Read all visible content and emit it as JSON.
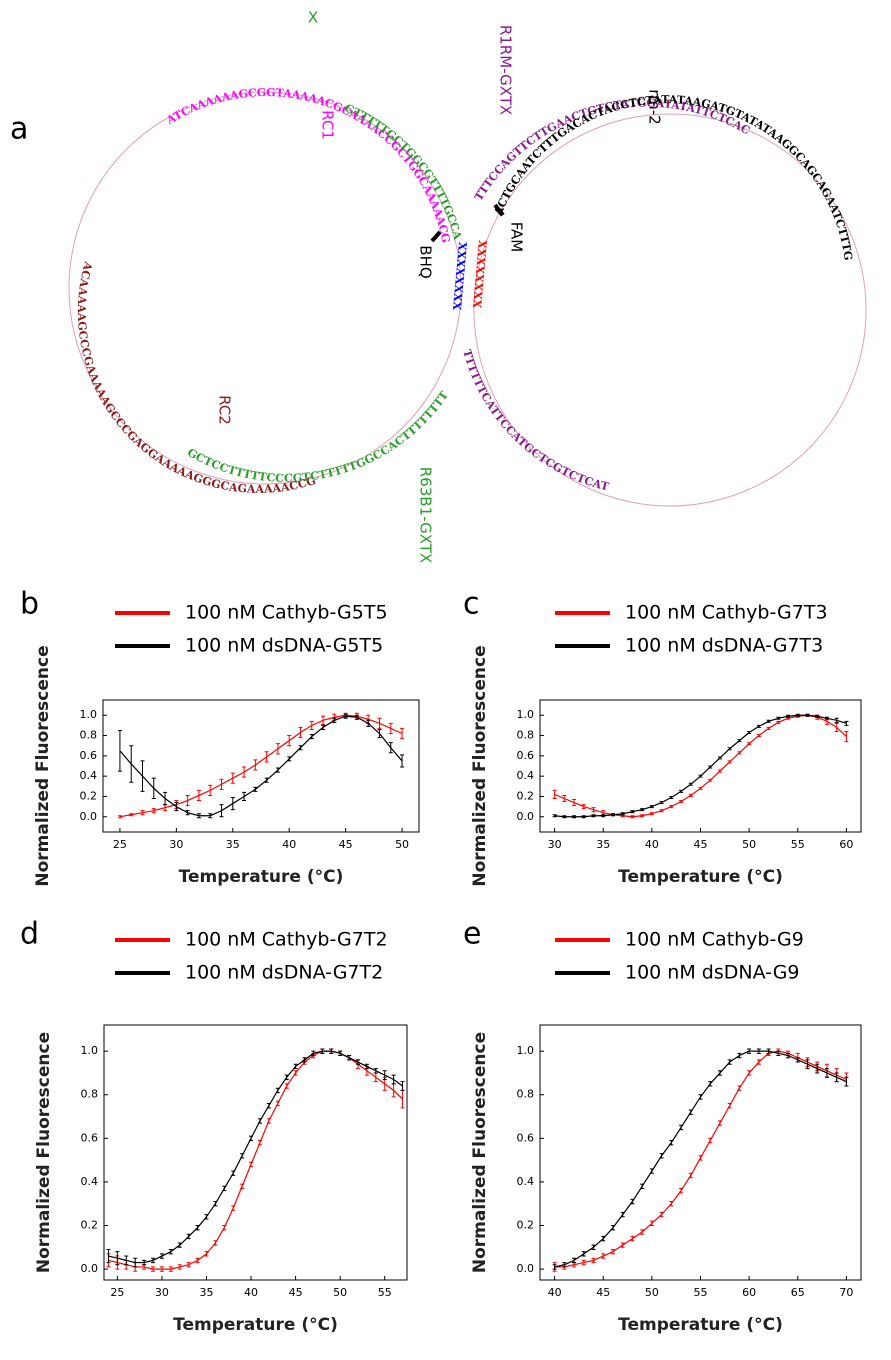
{
  "diagram": {
    "panel_label": "a",
    "x_label": "X",
    "r1rm": "R1RM-GXTX",
    "rc1": "RC1",
    "rm2": "rm-2",
    "fam": "FAM",
    "bhq": "BHQ",
    "rc2": "RC2",
    "r63b1": "R63B1-GXTX",
    "seq_rc1": "ATCAAAAAAGCGGTAAAAACGCAAAACCGCTGGCAAAAACGCTA",
    "seq_green_top": "GTTTTTGCTGGCGTTTTGCCAGCGGTTTTGCGTTT",
    "seq_rc2": "ACAAAAAGCCCGAAAAAGCCCGAGGAAAAAGGGCAGAAAAACCG",
    "seq_green_bottom": "GCTCCTTTTTCCCGTCTTTTTGGCCACTTTTTTTT",
    "seq_purple_top": "TTTCCAGTTCTTGAACTGTCTATGGATATATTCTCAC",
    "seq_rm2": "ACTGCAATCTTTGACACTACCTCTATATAAGATGTATATAAGGCAGCAGAATCTTTGG",
    "seq_purple_bottom": "TTTTTTCATTCCATGCTCGTCTCATCTTTCTT",
    "x_blue": "XXXXXXXX",
    "x_red": "XXXXXXXX"
  },
  "chart_data": [
    {
      "type": "line",
      "panel_label": "b",
      "xlabel": "Temperature (°C)",
      "ylabel": "Normalized Fluorescence",
      "xlim": [
        23.5,
        51.5
      ],
      "ylim": [
        -0.15,
        1.15
      ],
      "xticks": [
        25,
        30,
        35,
        40,
        45,
        50
      ],
      "yticks": [
        {
          "value": 0,
          "label": "0.0"
        },
        0.2,
        0.4,
        0.6,
        0.8,
        {
          "value": 1,
          "label": "1.0"
        }
      ],
      "x": [
        25,
        26,
        27,
        28,
        29,
        30,
        31,
        32,
        33,
        34,
        35,
        36,
        37,
        38,
        39,
        40,
        41,
        42,
        43,
        44,
        45,
        46,
        47,
        48,
        49,
        50
      ],
      "series": [
        {
          "name": "100 nM Cathyb-G5T5",
          "color": "#ff0000",
          "values": [
            0.0,
            0.02,
            0.04,
            0.06,
            0.09,
            0.12,
            0.16,
            0.21,
            0.26,
            0.32,
            0.38,
            0.44,
            0.51,
            0.59,
            0.67,
            0.75,
            0.83,
            0.9,
            0.95,
            0.98,
            1.0,
            0.99,
            0.96,
            0.92,
            0.87,
            0.82
          ],
          "errors": [
            0.01,
            0.01,
            0.02,
            0.02,
            0.03,
            0.04,
            0.05,
            0.05,
            0.05,
            0.05,
            0.05,
            0.05,
            0.05,
            0.05,
            0.05,
            0.05,
            0.05,
            0.04,
            0.04,
            0.03,
            0.02,
            0.03,
            0.04,
            0.05,
            0.05,
            0.05
          ]
        },
        {
          "name": "100 nM dsDNA-G5T5",
          "color": "#000000",
          "values": [
            0.65,
            0.52,
            0.4,
            0.28,
            0.18,
            0.1,
            0.04,
            0.01,
            0.01,
            0.06,
            0.13,
            0.2,
            0.27,
            0.36,
            0.46,
            0.57,
            0.68,
            0.79,
            0.88,
            0.95,
            0.99,
            0.98,
            0.92,
            0.82,
            0.68,
            0.55
          ],
          "errors": [
            0.2,
            0.18,
            0.15,
            0.1,
            0.06,
            0.04,
            0.02,
            0.02,
            0.02,
            0.06,
            0.06,
            0.04,
            0.02,
            0.02,
            0.02,
            0.02,
            0.02,
            0.02,
            0.02,
            0.02,
            0.02,
            0.02,
            0.03,
            0.04,
            0.05,
            0.06
          ]
        }
      ]
    },
    {
      "type": "line",
      "panel_label": "c",
      "xlabel": "Temperature (°C)",
      "ylabel": "Normalized Fluorescence",
      "xlim": [
        28.5,
        61.5
      ],
      "ylim": [
        -0.15,
        1.15
      ],
      "xticks": [
        30,
        35,
        40,
        45,
        50,
        55,
        60
      ],
      "yticks": [
        {
          "value": 0,
          "label": "0.0"
        },
        0.2,
        0.4,
        0.6,
        0.8,
        {
          "value": 1,
          "label": "1.0"
        }
      ],
      "x": [
        30,
        31,
        32,
        33,
        34,
        35,
        36,
        37,
        38,
        39,
        40,
        41,
        42,
        43,
        44,
        45,
        46,
        47,
        48,
        49,
        50,
        51,
        52,
        53,
        54,
        55,
        56,
        57,
        58,
        59,
        60
      ],
      "series": [
        {
          "name": "100 nM Cathyb-G7T3",
          "color": "#ff0000",
          "values": [
            0.22,
            0.18,
            0.14,
            0.1,
            0.07,
            0.04,
            0.02,
            0.01,
            0.0,
            0.01,
            0.03,
            0.06,
            0.1,
            0.15,
            0.21,
            0.28,
            0.36,
            0.45,
            0.54,
            0.63,
            0.72,
            0.8,
            0.87,
            0.93,
            0.97,
            0.99,
            1.0,
            0.98,
            0.94,
            0.88,
            0.79
          ],
          "errors": [
            0.04,
            0.03,
            0.03,
            0.02,
            0.02,
            0.02,
            0.01,
            0.01,
            0.01,
            0.01,
            0.01,
            0.01,
            0.01,
            0.01,
            0.01,
            0.01,
            0.01,
            0.01,
            0.01,
            0.01,
            0.01,
            0.01,
            0.01,
            0.01,
            0.01,
            0.01,
            0.01,
            0.02,
            0.03,
            0.04,
            0.05
          ]
        },
        {
          "name": "100 nM dsDNA-G7T3",
          "color": "#000000",
          "values": [
            0.01,
            0.0,
            0.0,
            0.0,
            0.01,
            0.01,
            0.02,
            0.03,
            0.05,
            0.07,
            0.1,
            0.14,
            0.19,
            0.25,
            0.32,
            0.4,
            0.49,
            0.58,
            0.67,
            0.75,
            0.83,
            0.89,
            0.94,
            0.97,
            0.99,
            1.0,
            1.0,
            0.99,
            0.97,
            0.95,
            0.92
          ],
          "errors": [
            0.01,
            0.01,
            0.01,
            0.01,
            0.01,
            0.01,
            0.01,
            0.01,
            0.01,
            0.01,
            0.01,
            0.01,
            0.01,
            0.01,
            0.01,
            0.01,
            0.01,
            0.01,
            0.01,
            0.01,
            0.01,
            0.01,
            0.01,
            0.01,
            0.01,
            0.01,
            0.01,
            0.01,
            0.01,
            0.02,
            0.02
          ]
        }
      ]
    },
    {
      "type": "line",
      "panel_label": "d",
      "xlabel": "Temperature (°C)",
      "ylabel": "Normalized Fluorescence",
      "xlim": [
        23.5,
        57.5
      ],
      "ylim": [
        -0.05,
        1.12
      ],
      "xticks": [
        25,
        30,
        35,
        40,
        45,
        50,
        55
      ],
      "yticks": [
        {
          "value": 0,
          "label": "0.0"
        },
        0.2,
        0.4,
        0.6,
        0.8,
        {
          "value": 1,
          "label": "1.0"
        }
      ],
      "x": [
        24,
        25,
        26,
        27,
        28,
        29,
        30,
        31,
        32,
        33,
        34,
        35,
        36,
        37,
        38,
        39,
        40,
        41,
        42,
        43,
        44,
        45,
        46,
        47,
        48,
        49,
        50,
        51,
        52,
        53,
        54,
        55,
        56,
        57
      ],
      "series": [
        {
          "name": "100 nM Cathyb-G7T2",
          "color": "#ff0000",
          "values": [
            0.04,
            0.03,
            0.02,
            0.01,
            0.01,
            0.0,
            0.0,
            0.0,
            0.01,
            0.02,
            0.04,
            0.07,
            0.12,
            0.19,
            0.28,
            0.38,
            0.48,
            0.58,
            0.68,
            0.76,
            0.84,
            0.9,
            0.95,
            0.98,
            1.0,
            1.0,
            0.99,
            0.97,
            0.94,
            0.91,
            0.88,
            0.85,
            0.82,
            0.78
          ],
          "errors": [
            0.03,
            0.03,
            0.02,
            0.02,
            0.01,
            0.01,
            0.01,
            0.01,
            0.01,
            0.01,
            0.01,
            0.01,
            0.01,
            0.01,
            0.01,
            0.01,
            0.01,
            0.01,
            0.01,
            0.01,
            0.01,
            0.01,
            0.01,
            0.01,
            0.01,
            0.01,
            0.01,
            0.01,
            0.02,
            0.02,
            0.02,
            0.03,
            0.03,
            0.04
          ]
        },
        {
          "name": "100 nM dsDNA-G7T2",
          "color": "#000000",
          "values": [
            0.06,
            0.05,
            0.04,
            0.03,
            0.03,
            0.04,
            0.06,
            0.08,
            0.11,
            0.15,
            0.19,
            0.24,
            0.3,
            0.37,
            0.44,
            0.52,
            0.6,
            0.68,
            0.75,
            0.82,
            0.88,
            0.93,
            0.96,
            0.99,
            1.0,
            1.0,
            0.99,
            0.97,
            0.95,
            0.93,
            0.91,
            0.89,
            0.87,
            0.84
          ],
          "errors": [
            0.03,
            0.03,
            0.02,
            0.02,
            0.01,
            0.01,
            0.01,
            0.01,
            0.01,
            0.01,
            0.01,
            0.01,
            0.01,
            0.01,
            0.01,
            0.01,
            0.01,
            0.01,
            0.01,
            0.01,
            0.01,
            0.01,
            0.01,
            0.01,
            0.01,
            0.01,
            0.01,
            0.01,
            0.01,
            0.01,
            0.01,
            0.02,
            0.02,
            0.02
          ]
        }
      ]
    },
    {
      "type": "line",
      "panel_label": "e",
      "xlabel": "Temperature (°C)",
      "ylabel": "Normalized Fluorescence",
      "xlim": [
        38.5,
        71.5
      ],
      "ylim": [
        -0.05,
        1.12
      ],
      "xticks": [
        40,
        45,
        50,
        55,
        60,
        65,
        70
      ],
      "yticks": [
        {
          "value": 0,
          "label": "0.0"
        },
        0.2,
        0.4,
        0.6,
        0.8,
        {
          "value": 1,
          "label": "1.0"
        }
      ],
      "x": [
        40,
        41,
        42,
        43,
        44,
        45,
        46,
        47,
        48,
        49,
        50,
        51,
        52,
        53,
        54,
        55,
        56,
        57,
        58,
        59,
        60,
        61,
        62,
        63,
        64,
        65,
        66,
        67,
        68,
        69,
        70
      ],
      "series": [
        {
          "name": "100 nM Cathyb-G9",
          "color": "#ff0000",
          "values": [
            0.01,
            0.01,
            0.02,
            0.03,
            0.04,
            0.06,
            0.08,
            0.11,
            0.14,
            0.17,
            0.21,
            0.25,
            0.3,
            0.36,
            0.43,
            0.51,
            0.59,
            0.67,
            0.75,
            0.83,
            0.9,
            0.95,
            0.99,
            1.0,
            0.99,
            0.97,
            0.95,
            0.93,
            0.91,
            0.89,
            0.87
          ],
          "errors": [
            0.02,
            0.01,
            0.01,
            0.01,
            0.01,
            0.01,
            0.01,
            0.01,
            0.01,
            0.01,
            0.01,
            0.01,
            0.01,
            0.01,
            0.01,
            0.01,
            0.01,
            0.01,
            0.01,
            0.01,
            0.01,
            0.01,
            0.01,
            0.01,
            0.01,
            0.02,
            0.02,
            0.02,
            0.03,
            0.03,
            0.03
          ]
        },
        {
          "name": "100 nM dsDNA-G9",
          "color": "#000000",
          "values": [
            0.01,
            0.02,
            0.04,
            0.07,
            0.1,
            0.14,
            0.19,
            0.25,
            0.31,
            0.38,
            0.45,
            0.52,
            0.58,
            0.65,
            0.72,
            0.79,
            0.85,
            0.9,
            0.95,
            0.98,
            1.0,
            1.0,
            1.0,
            0.99,
            0.98,
            0.96,
            0.94,
            0.92,
            0.9,
            0.88,
            0.86
          ],
          "errors": [
            0.01,
            0.01,
            0.01,
            0.01,
            0.01,
            0.01,
            0.01,
            0.01,
            0.01,
            0.01,
            0.01,
            0.01,
            0.01,
            0.01,
            0.01,
            0.01,
            0.01,
            0.01,
            0.01,
            0.01,
            0.01,
            0.01,
            0.01,
            0.01,
            0.01,
            0.01,
            0.02,
            0.02,
            0.02,
            0.02,
            0.02
          ]
        }
      ]
    }
  ]
}
